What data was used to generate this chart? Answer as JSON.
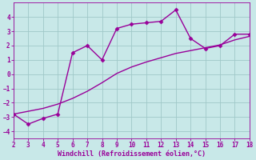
{
  "x": [
    2,
    3,
    4,
    5,
    6,
    7,
    8,
    9,
    10,
    11,
    12,
    13,
    14,
    15,
    16,
    17,
    18
  ],
  "y_curve": [
    -2.8,
    -3.5,
    -3.1,
    -2.8,
    1.5,
    2.0,
    1.0,
    3.2,
    3.5,
    3.6,
    3.7,
    4.5,
    2.5,
    1.8,
    2.0,
    2.8,
    2.8
  ],
  "y_line": [
    -2.8,
    -2.6,
    -2.4,
    -2.1,
    -1.7,
    -1.2,
    -0.6,
    0.05,
    0.5,
    0.85,
    1.15,
    1.45,
    1.65,
    1.85,
    2.05,
    2.4,
    2.65
  ],
  "line_color": "#990099",
  "background_color": "#c8e8e8",
  "grid_color": "#a0c8c8",
  "xlabel": "Windchill (Refroidissement éolien,°C)",
  "ylim": [
    -4.5,
    5.0
  ],
  "xlim": [
    2,
    18
  ],
  "yticks": [
    -4,
    -3,
    -2,
    -1,
    0,
    1,
    2,
    3,
    4
  ],
  "xticks": [
    2,
    3,
    4,
    5,
    6,
    7,
    8,
    9,
    10,
    11,
    12,
    13,
    14,
    15,
    16,
    17,
    18
  ],
  "tick_fontsize": 5.5,
  "xlabel_fontsize": 6.0,
  "marker_size": 2.5,
  "line_width": 1.0
}
